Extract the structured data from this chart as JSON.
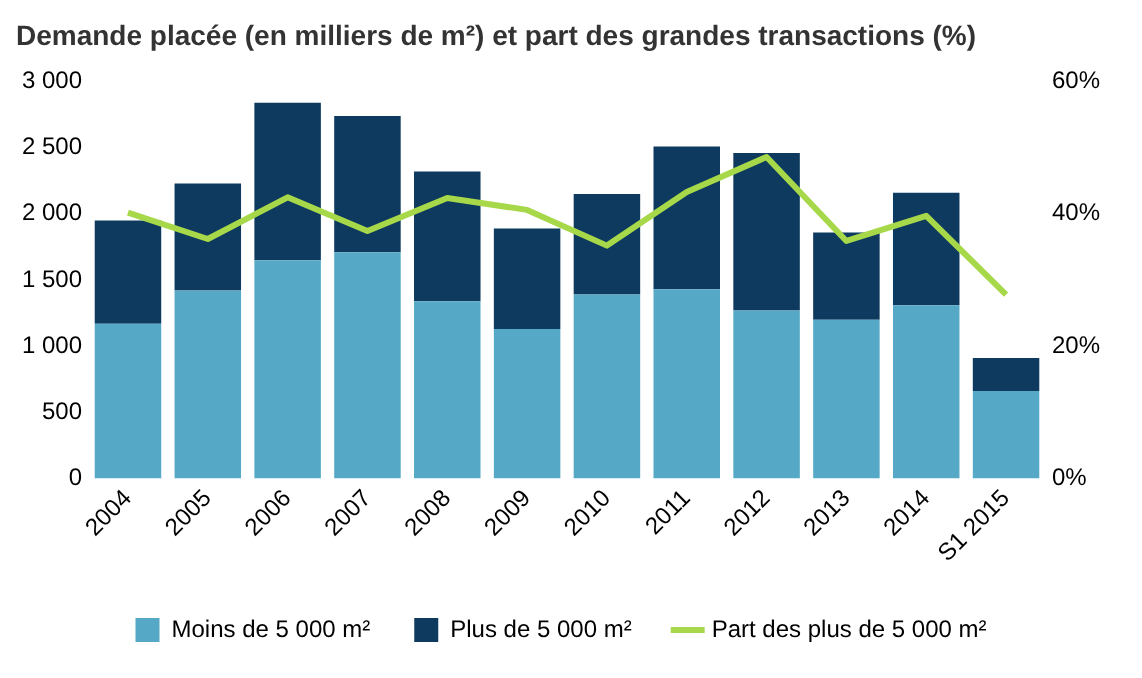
{
  "chart_data": {
    "type": "bar",
    "title": "Demande placée (en milliers de m²) et part des grandes transactions (%)",
    "categories": [
      "2004",
      "2005",
      "2006",
      "2007",
      "2008",
      "2009",
      "2010",
      "2011",
      "2012",
      "2013",
      "2014",
      "S1 2015"
    ],
    "stacked": true,
    "series": [
      {
        "name": "Moins de 5 000 m²",
        "color": "#56a9c6",
        "values": [
          1170,
          1420,
          1650,
          1710,
          1340,
          1130,
          1390,
          1430,
          1270,
          1200,
          1310,
          660
        ]
      },
      {
        "name": "Plus de 5 000 m²",
        "color": "#0d3a5e",
        "values": [
          780,
          810,
          1190,
          1030,
          980,
          760,
          760,
          1080,
          1190,
          660,
          850,
          250
        ]
      },
      {
        "name": "Part des plus de 5 000 m²",
        "type": "line",
        "axis": "y2",
        "color": "#a6d84a",
        "marker": "none",
        "values": [
          40.2,
          36.2,
          42.5,
          37.4,
          42.4,
          40.6,
          35.2,
          43.3,
          48.6,
          35.9,
          39.7,
          27.8
        ]
      }
    ],
    "ylim": [
      0,
      3000
    ],
    "yticks": [
      0,
      {
        "value": 500,
        "label": "500"
      },
      {
        "value": 1000,
        "label": "1 000"
      },
      {
        "value": 1500,
        "label": "1 500"
      },
      {
        "value": 2000,
        "label": "2 000"
      },
      {
        "value": 2500,
        "label": "2 500"
      },
      {
        "value": 3000,
        "label": "3 000"
      }
    ],
    "y2lim": [
      0,
      60
    ],
    "y2ticks": [
      {
        "value": 0,
        "label": "0%"
      },
      {
        "value": 20,
        "label": "20%"
      },
      {
        "value": 40,
        "label": "40%"
      },
      {
        "value": 60,
        "label": "60%"
      }
    ],
    "grid": false,
    "legend": "bottom"
  }
}
